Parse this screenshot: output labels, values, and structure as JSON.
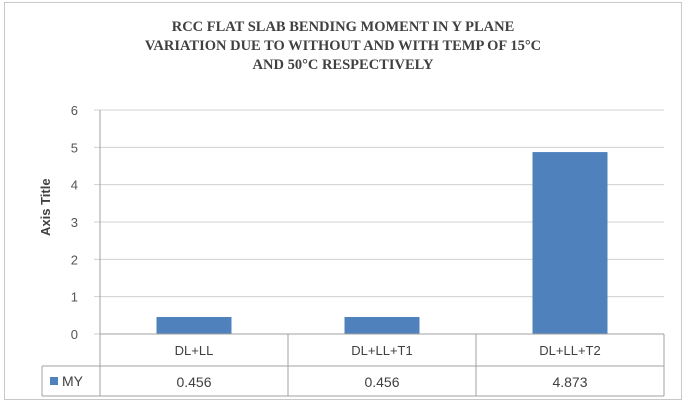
{
  "chart_data": {
    "type": "bar",
    "title_lines": [
      "RCC FLAT SLAB BENDING MOMENT IN Y PLANE",
      "VARIATION DUE TO WITHOUT AND WITH TEMP OF 15°C",
      "AND 50°C RESPECTIVELY"
    ],
    "ylabel": "Axis Title",
    "xlabel": "",
    "categories": [
      "DL+LL",
      "DL+LL+T1",
      "DL+LL+T2"
    ],
    "series": [
      {
        "name": "MY",
        "values": [
          0.456,
          0.456,
          4.873
        ],
        "value_labels": [
          "0.456",
          "0.456",
          "4.873"
        ],
        "color": "#4f81bd"
      }
    ],
    "ylim": [
      0,
      6
    ],
    "yticks": [
      0,
      1,
      2,
      3,
      4,
      5,
      6
    ],
    "grid": true,
    "legend": "data-table",
    "data_table": true
  }
}
